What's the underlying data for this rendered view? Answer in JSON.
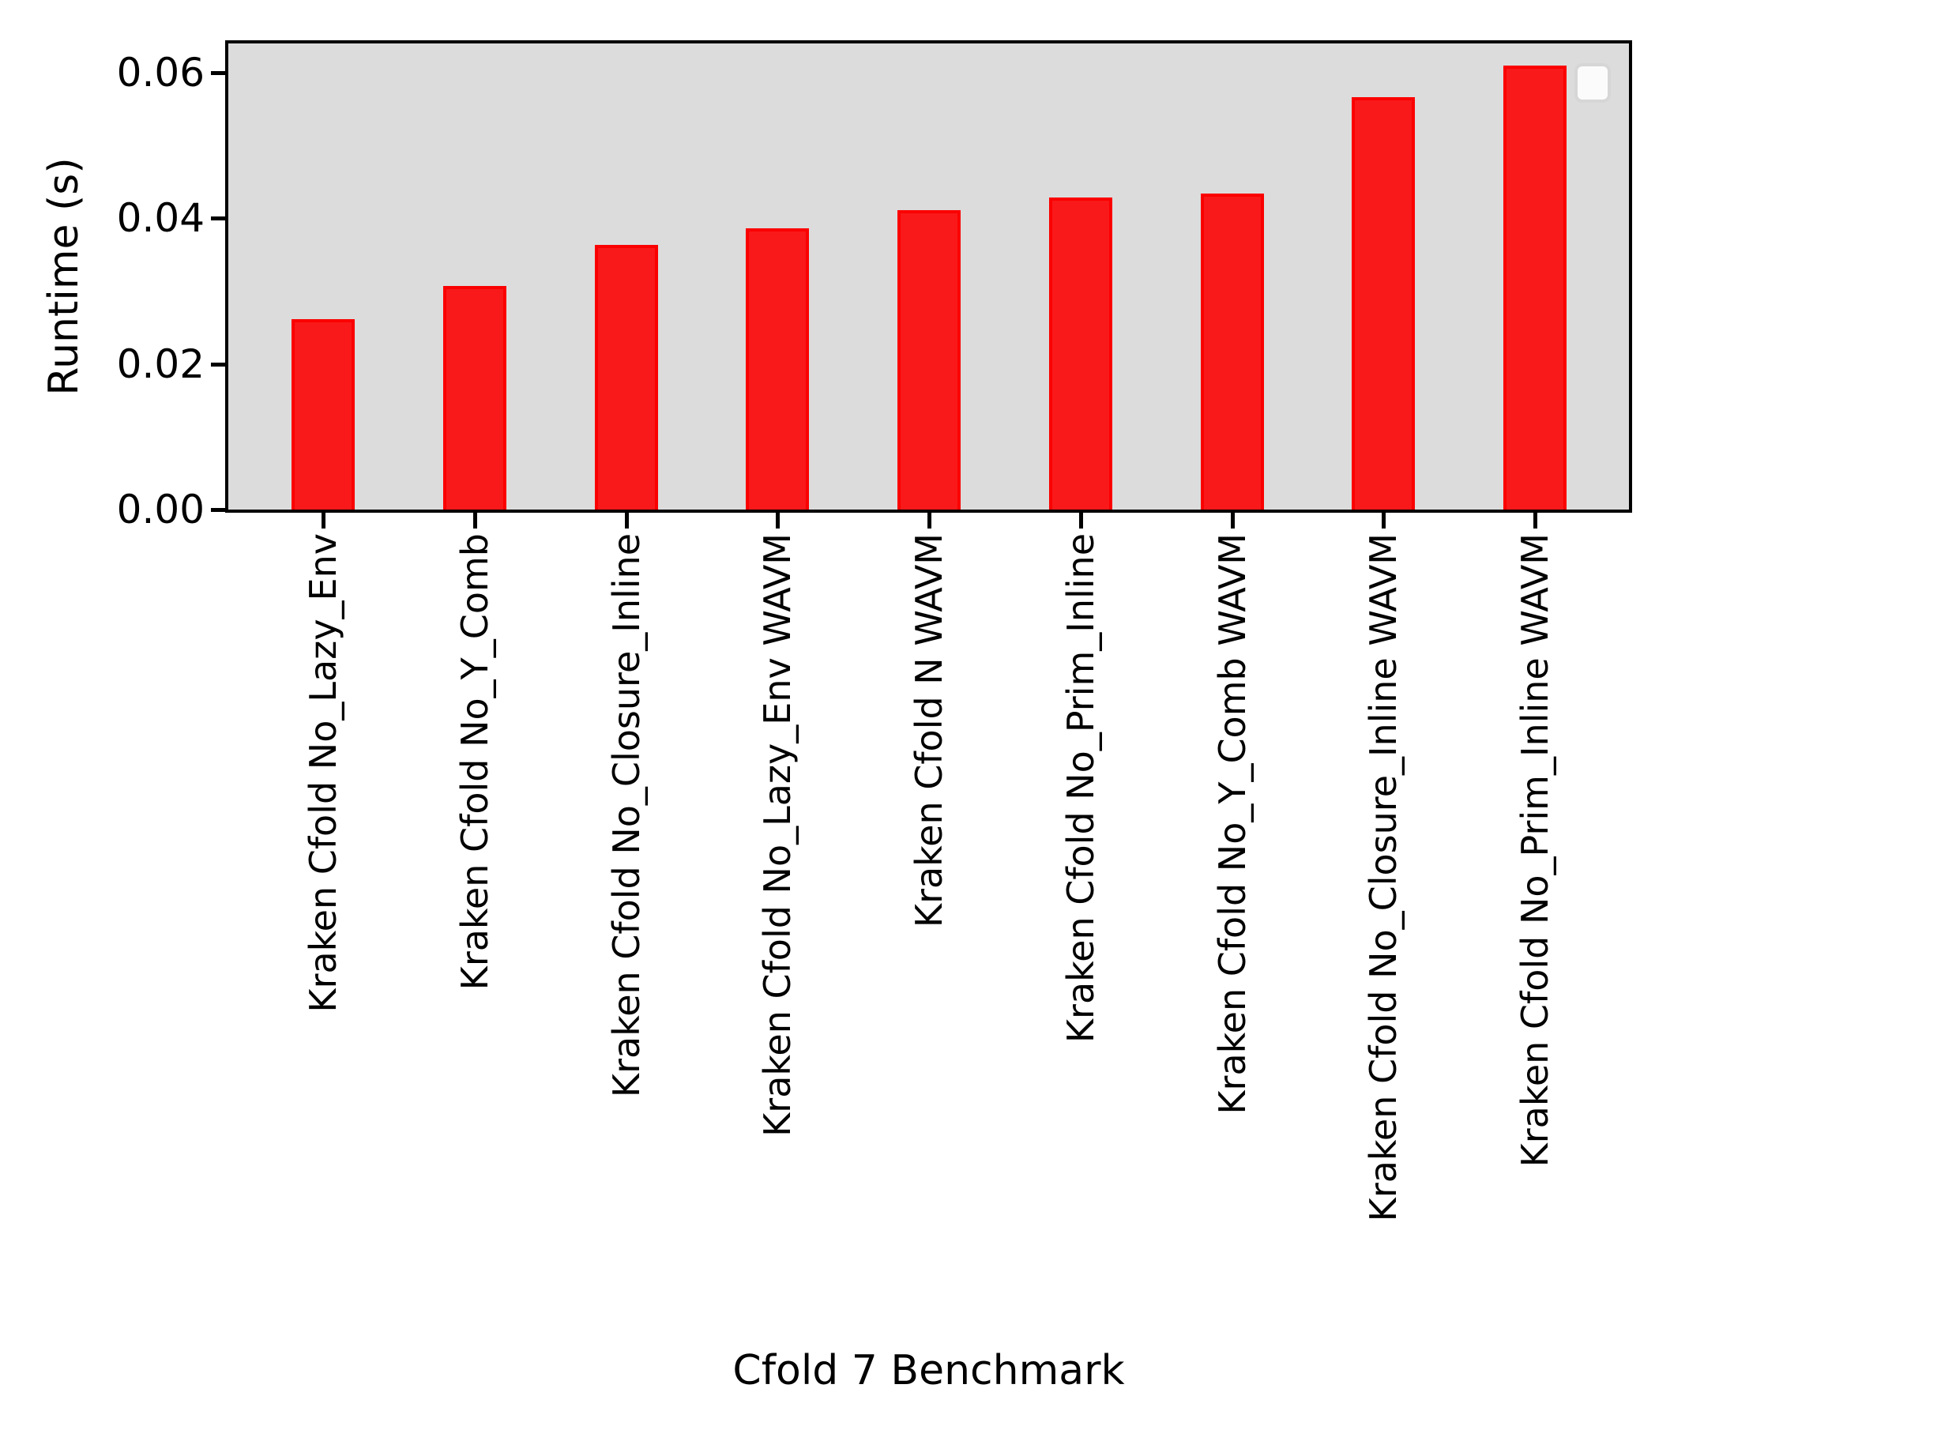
{
  "chart_data": {
    "type": "bar",
    "title": "",
    "xlabel": "Cfold 7 Benchmark",
    "ylabel": "Runtime (s)",
    "categories": [
      "Kraken Cfold No_Lazy_Env",
      "Kraken Cfold No_Y_Comb",
      "Kraken Cfold No_Closure_Inline",
      "Kraken Cfold No_Lazy_Env WAVM",
      "Kraken Cfold N WAVM",
      "Kraken Cfold No_Prim_Inline",
      "Kraken Cfold No_Y_Comb WAVM",
      "Kraken Cfold No_Closure_Inline WAVM",
      "Kraken Cfold No_Prim_Inline WAVM"
    ],
    "values": [
      0.0261,
      0.0307,
      0.0363,
      0.0386,
      0.0411,
      0.0429,
      0.0434,
      0.0566,
      0.061
    ],
    "ytick_labels": [
      "0.00",
      "0.02",
      "0.04",
      "0.06"
    ],
    "ytick_values": [
      0.0,
      0.02,
      0.04,
      0.06
    ],
    "ylim": [
      0,
      0.064
    ],
    "xtick_rotation_deg": 90,
    "grid": false,
    "legend": {
      "visible": true,
      "entries": [],
      "position": "upper-right"
    },
    "colors": {
      "bar_fill": "#f9191a",
      "bar_edge": "#fb0000",
      "plot_background": "#dcdcdc",
      "figure_background": "#ffffff",
      "spine": "#000000",
      "text": "#000000",
      "legend_fill": "#fbfbfb",
      "legend_border": "#d6d6d6"
    }
  }
}
